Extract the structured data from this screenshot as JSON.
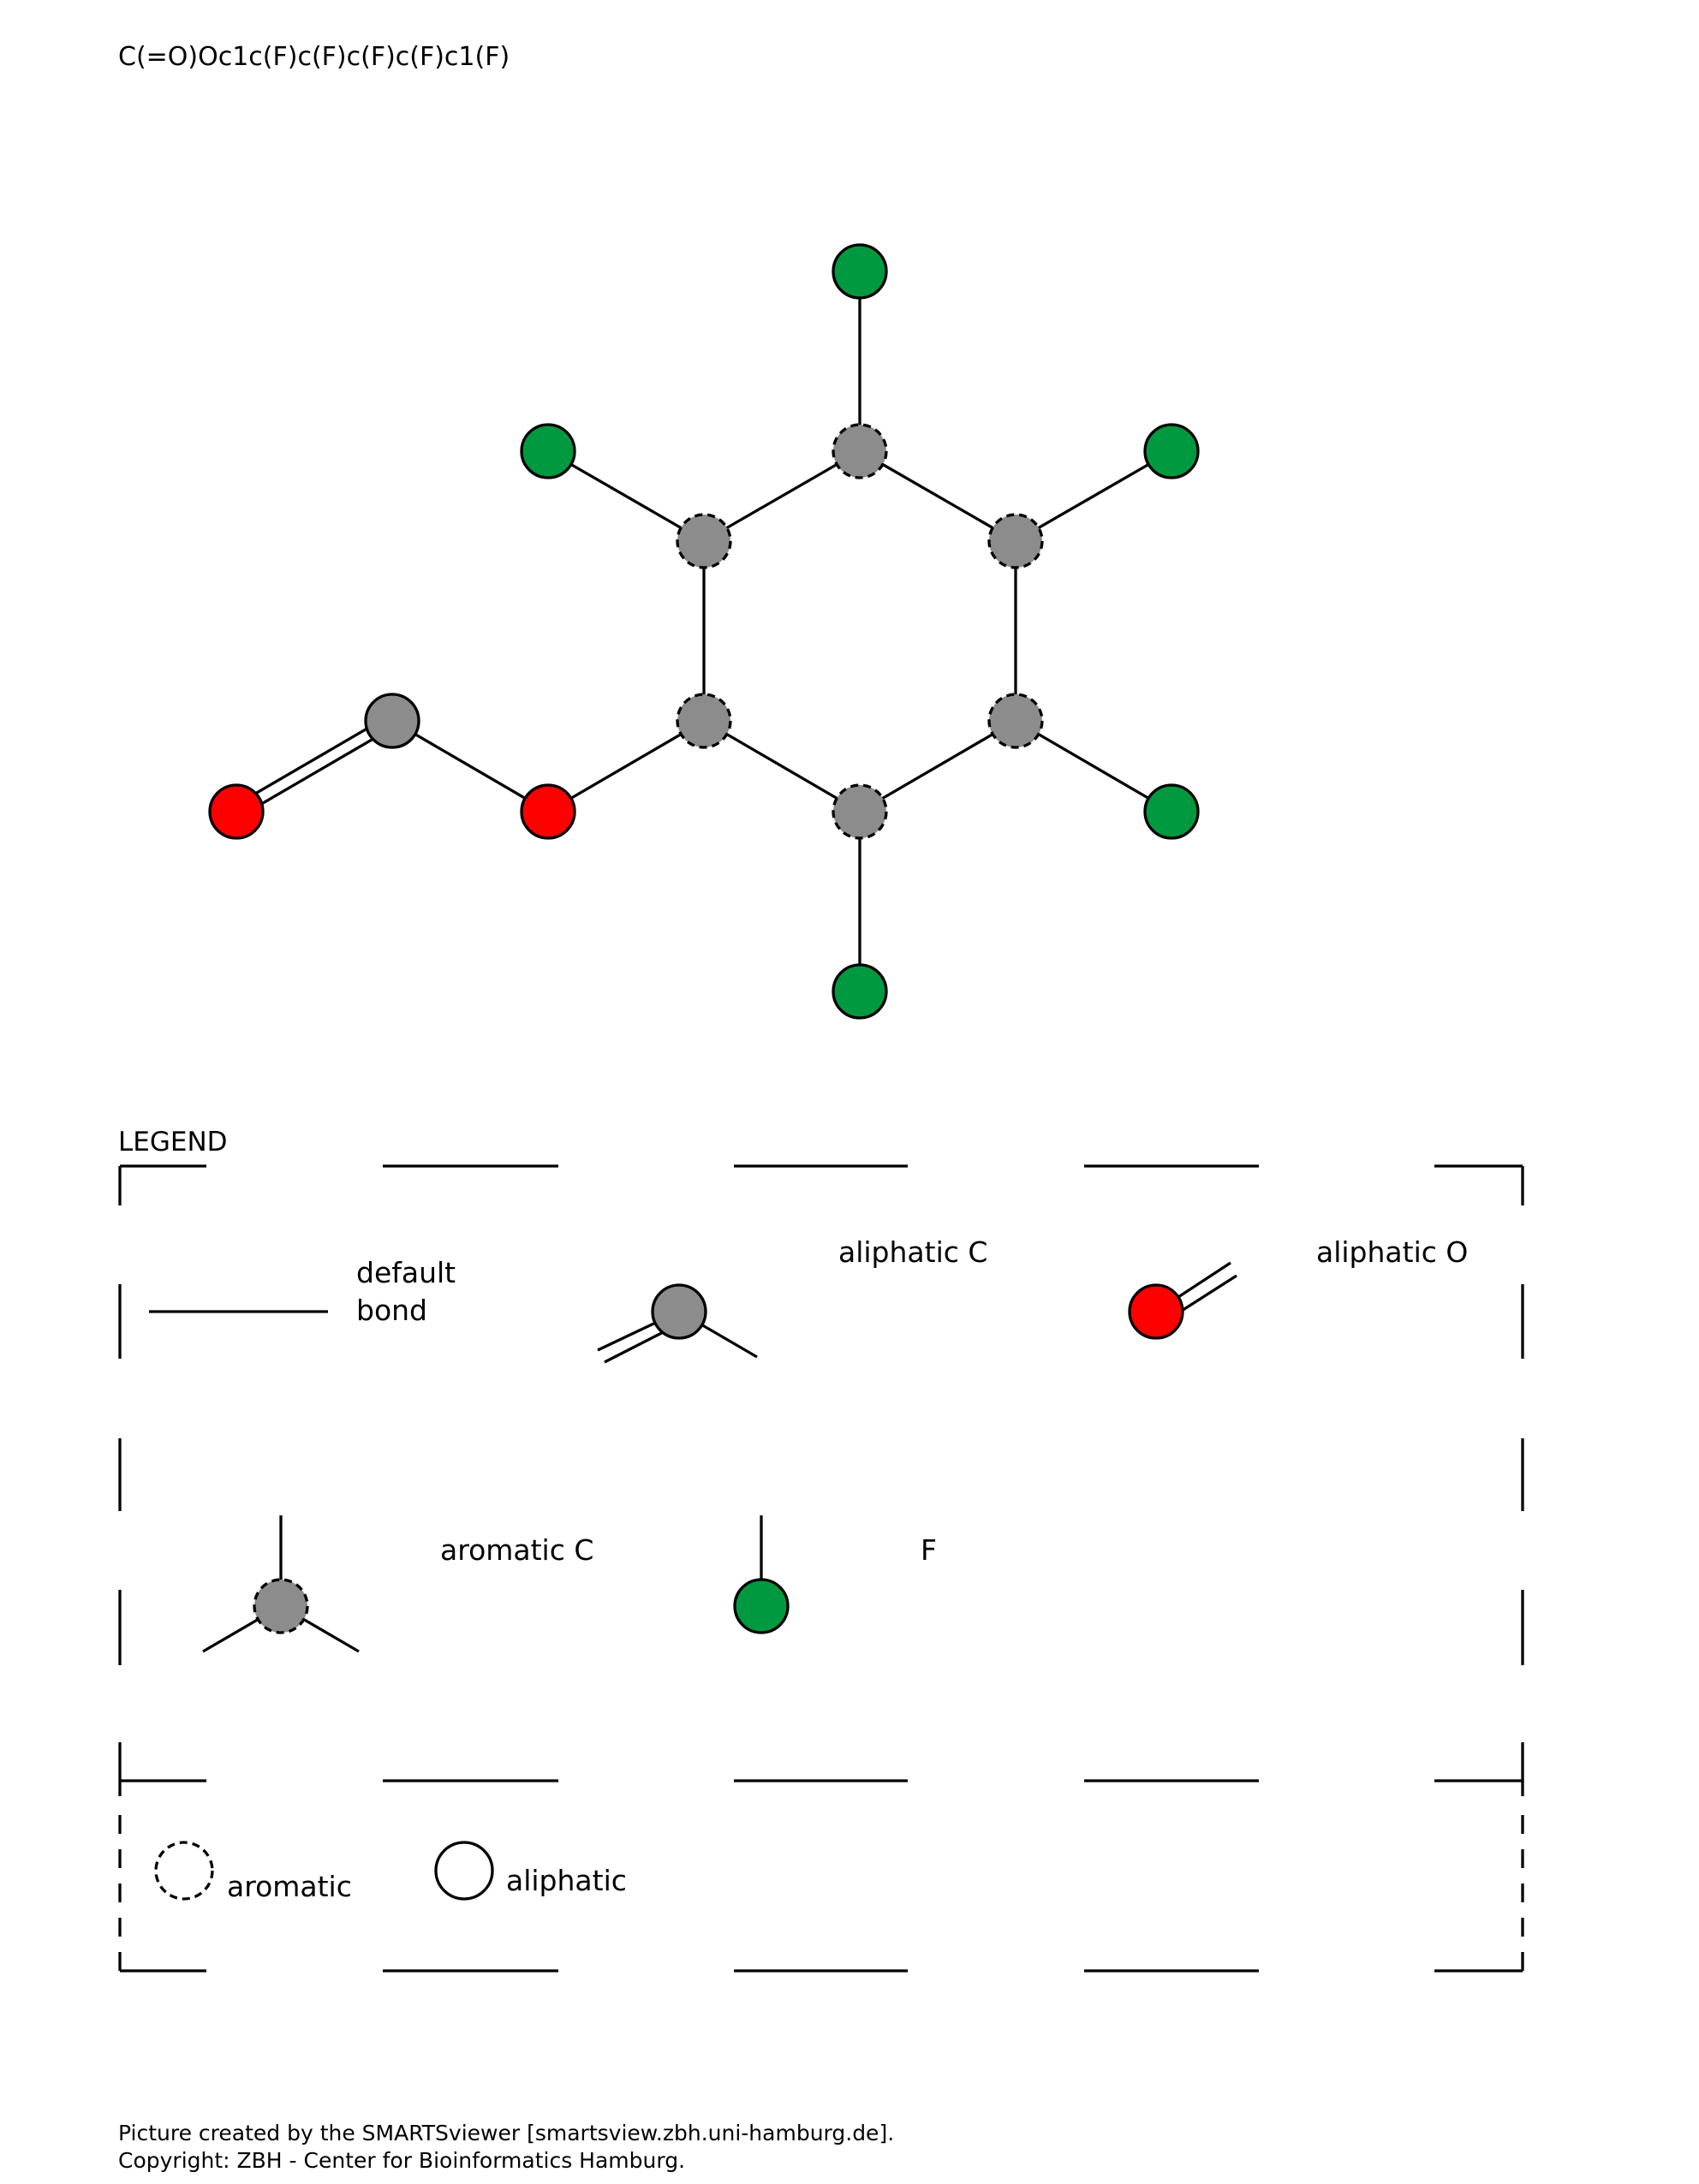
{
  "smarts": "C(=O)Oc1c(F)c(F)c(F)c(F)c1(F)",
  "colors": {
    "carbon": "#8c8c8c",
    "oxygen": "#ff0000",
    "fluorine": "#00993f",
    "bond": "#000000",
    "background": "#ffffff"
  },
  "molecule": {
    "atoms": [
      {
        "id": "C1",
        "element": "C",
        "aromatic": false
      },
      {
        "id": "O1",
        "element": "O",
        "aromatic": false
      },
      {
        "id": "O2",
        "element": "O",
        "aromatic": false
      },
      {
        "id": "a1",
        "element": "C",
        "aromatic": true
      },
      {
        "id": "a2",
        "element": "C",
        "aromatic": true
      },
      {
        "id": "a3",
        "element": "C",
        "aromatic": true
      },
      {
        "id": "a4",
        "element": "C",
        "aromatic": true
      },
      {
        "id": "a5",
        "element": "C",
        "aromatic": true
      },
      {
        "id": "a6",
        "element": "C",
        "aromatic": true
      },
      {
        "id": "F1",
        "element": "F",
        "aromatic": false
      },
      {
        "id": "F2",
        "element": "F",
        "aromatic": false
      },
      {
        "id": "F3",
        "element": "F",
        "aromatic": false
      },
      {
        "id": "F4",
        "element": "F",
        "aromatic": false
      },
      {
        "id": "F5",
        "element": "F",
        "aromatic": false
      }
    ],
    "bonds": [
      {
        "from": "C1",
        "to": "O1",
        "order": 2
      },
      {
        "from": "C1",
        "to": "O2",
        "order": 1
      },
      {
        "from": "O2",
        "to": "a1",
        "order": 1
      },
      {
        "from": "a1",
        "to": "a2",
        "order": 1
      },
      {
        "from": "a2",
        "to": "a3",
        "order": 1
      },
      {
        "from": "a3",
        "to": "a4",
        "order": 1
      },
      {
        "from": "a4",
        "to": "a5",
        "order": 1
      },
      {
        "from": "a5",
        "to": "a6",
        "order": 1
      },
      {
        "from": "a6",
        "to": "a1",
        "order": 1
      },
      {
        "from": "a2",
        "to": "F1",
        "order": 1
      },
      {
        "from": "a3",
        "to": "F2",
        "order": 1
      },
      {
        "from": "a4",
        "to": "F3",
        "order": 1
      },
      {
        "from": "a5",
        "to": "F4",
        "order": 1
      },
      {
        "from": "a6",
        "to": "F5",
        "order": 1
      }
    ]
  },
  "legend": {
    "title": "LEGEND",
    "items": {
      "default_bond": {
        "line1": "default",
        "line2": "bond"
      },
      "aliphatic_c": "aliphatic C",
      "aliphatic_o": "aliphatic O",
      "aromatic_c": "aromatic C",
      "fluorine": "F"
    },
    "styles": {
      "aromatic": "aromatic",
      "aliphatic": "aliphatic"
    }
  },
  "footer": {
    "line1": "Picture created by the SMARTSviewer [smartsview.zbh.uni-hamburg.de].",
    "line2": "Copyright: ZBH - Center for Bioinformatics Hamburg."
  }
}
